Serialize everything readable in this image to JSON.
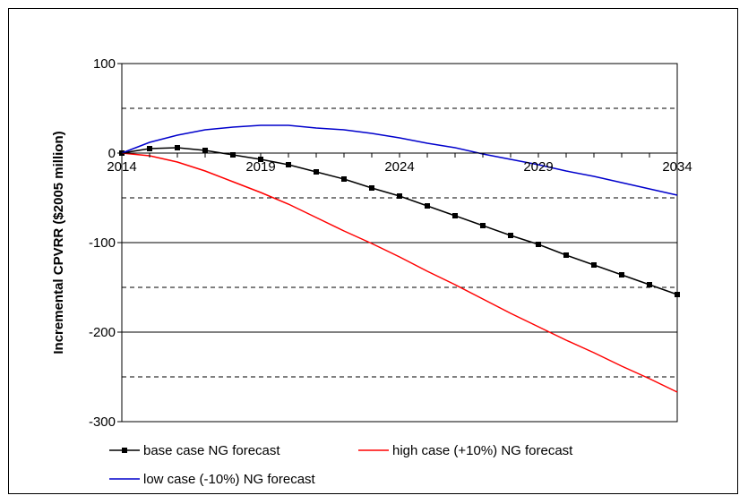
{
  "chart_data": {
    "type": "line",
    "title": "",
    "xlabel": "",
    "ylabel": "Incremental CPVRR ($2005 million)",
    "xlim": [
      2014,
      2034
    ],
    "ylim": [
      -300,
      100
    ],
    "x_ticks": [
      "2014",
      "2019",
      "2024",
      "2029",
      "2034"
    ],
    "y_ticks": [
      "100",
      "0",
      "-100",
      "-200",
      "-300"
    ],
    "grid": "solid major gridlines at -300, -200, -100, 0, 100; dashed minor gridlines at -250, -150, -50, 50",
    "legend_position": "bottom",
    "x": [
      2014,
      2015,
      2016,
      2017,
      2018,
      2019,
      2020,
      2021,
      2022,
      2023,
      2024,
      2025,
      2026,
      2027,
      2028,
      2029,
      2030,
      2031,
      2032,
      2033,
      2034
    ],
    "series": [
      {
        "name": "base case NG forecast",
        "color": "#000000",
        "marker": "square",
        "values": [
          0,
          5,
          6,
          3,
          -2,
          -7,
          -13,
          -21,
          -29,
          -39,
          -48,
          -59,
          -70,
          -81,
          -92,
          -102,
          -114,
          -125,
          -136,
          -147,
          -158
        ]
      },
      {
        "name": "high case (+10%) NG forecast",
        "color": "#ff0000",
        "marker": "none",
        "values": [
          0,
          -3,
          -10,
          -20,
          -32,
          -44,
          -57,
          -72,
          -87,
          -101,
          -116,
          -132,
          -147,
          -163,
          -179,
          -194,
          -209,
          -223,
          -238,
          -252,
          -267
        ]
      },
      {
        "name": "low case (-10%) NG forecast",
        "color": "#0000cc",
        "marker": "none",
        "values": [
          0,
          12,
          20,
          26,
          29,
          31,
          31,
          28,
          26,
          22,
          17,
          11,
          6,
          -1,
          -7,
          -13,
          -20,
          -26,
          -33,
          -40,
          -47
        ]
      }
    ]
  }
}
